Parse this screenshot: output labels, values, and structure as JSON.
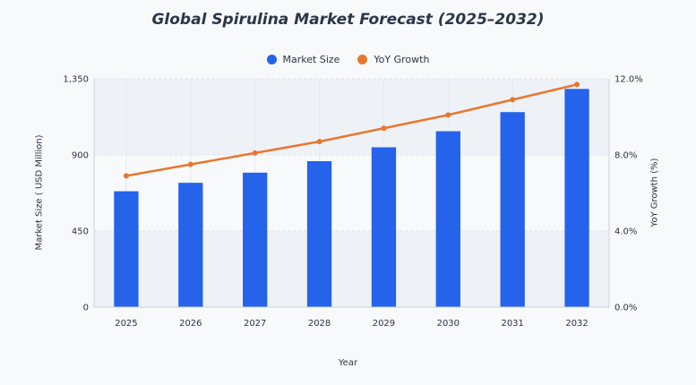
{
  "chart_data": {
    "type": "bar",
    "title": "Global Spirulina Market Forecast (2025–2032)",
    "xlabel": "Year",
    "ylabel": "Market Size ( USD Million)",
    "y2label": "YoY Growth (%)",
    "categories": [
      "2025",
      "2026",
      "2027",
      "2028",
      "2029",
      "2030",
      "2031",
      "2032"
    ],
    "ylim": [
      0,
      1350
    ],
    "yticks": [
      0,
      450,
      900,
      1350
    ],
    "ytick_labels": [
      "0",
      "450",
      "900",
      "1,350"
    ],
    "y2lim": [
      0,
      12
    ],
    "y2ticks": [
      0,
      4,
      8,
      12
    ],
    "y2tick_labels": [
      "0.0%",
      "4.0%",
      "8.0%",
      "12.0%"
    ],
    "series": [
      {
        "name": "Market Size",
        "type": "bar",
        "axis": "left",
        "color": "#2563eb",
        "values": [
          685,
          735,
          795,
          863,
          945,
          1040,
          1153,
          1290
        ]
      },
      {
        "name": "YoY Growth",
        "type": "line",
        "axis": "right",
        "color": "#e8772e",
        "values": [
          6.9,
          7.5,
          8.1,
          8.7,
          9.4,
          10.1,
          10.9,
          11.7
        ]
      }
    ],
    "grid": true,
    "legend_position": "top-center"
  }
}
